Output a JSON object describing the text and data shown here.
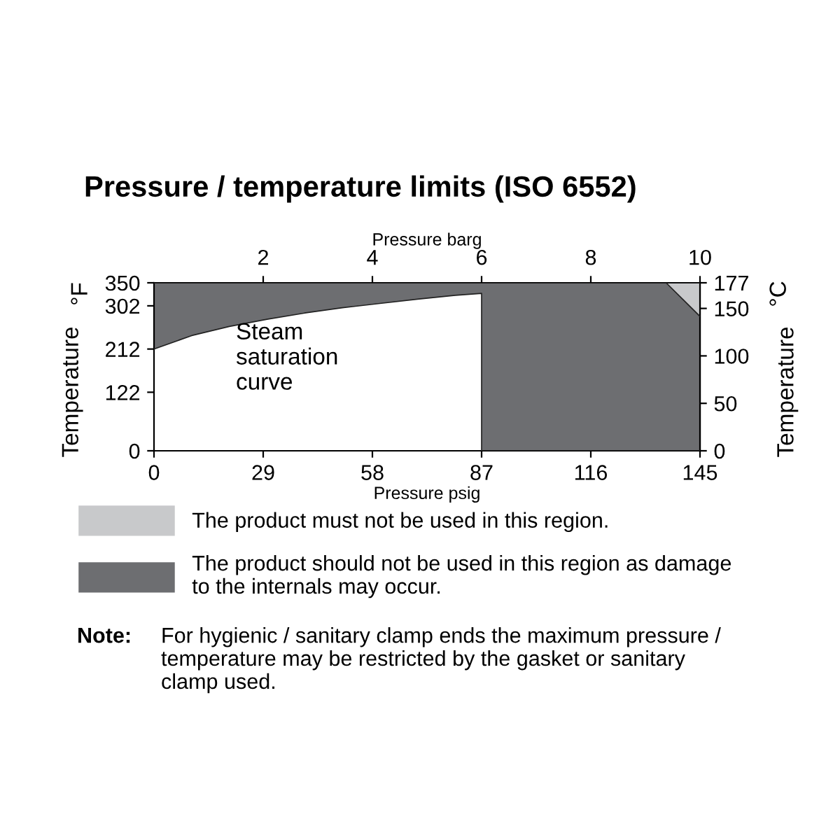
{
  "chart_data": {
    "type": "area",
    "title": "Pressure / temperature limits (ISO 6552)",
    "xlabel": "Pressure psig",
    "x2label": "Pressure barg",
    "ylabel": "Temperature",
    "y2label": "Temperature",
    "xlim": [
      0,
      145
    ],
    "xticks": [
      0,
      29,
      58,
      87,
      116,
      145
    ],
    "x2lim": [
      0,
      10
    ],
    "x2ticks": [
      2,
      4,
      6,
      8,
      10
    ],
    "ylim": [
      0,
      350
    ],
    "yticks": [
      0,
      122,
      212,
      302,
      350
    ],
    "y2lim": [
      0,
      177
    ],
    "y2ticks": [
      0,
      50,
      100,
      150,
      177
    ],
    "stacked": true,
    "x": [
      0,
      10,
      20,
      30,
      40,
      50,
      60,
      70,
      80,
      87,
      87,
      136,
      145
    ],
    "series": [
      {
        "color": "#ffffff",
        "values": [
          212,
          240,
          259,
          274,
          287,
          298,
          307,
          316,
          324,
          328,
          0,
          0,
          0
        ]
      },
      {
        "name": "The product should not be used in this region as damage\nto the internals may occur.",
        "color": "#6d6e71",
        "values": [
          138,
          110,
          91,
          76,
          63,
          52,
          43,
          34,
          26,
          22,
          350,
          350,
          280
        ]
      },
      {
        "name": "The product must not be used in this region.",
        "color": "#c8c9cb",
        "values": [
          0,
          0,
          0,
          0,
          0,
          0,
          0,
          0,
          0,
          0,
          0,
          0,
          70
        ]
      }
    ],
    "legend": "bottom",
    "grid": false,
    "annotations": [
      "Steam\nsaturation\ncurve",
      "°F",
      "°C",
      "Note:",
      "For hygienic / sanitary clamp ends the maximum pressure /\ntemperature may be restricted by the gasket or sanitary\nclamp used."
    ]
  }
}
